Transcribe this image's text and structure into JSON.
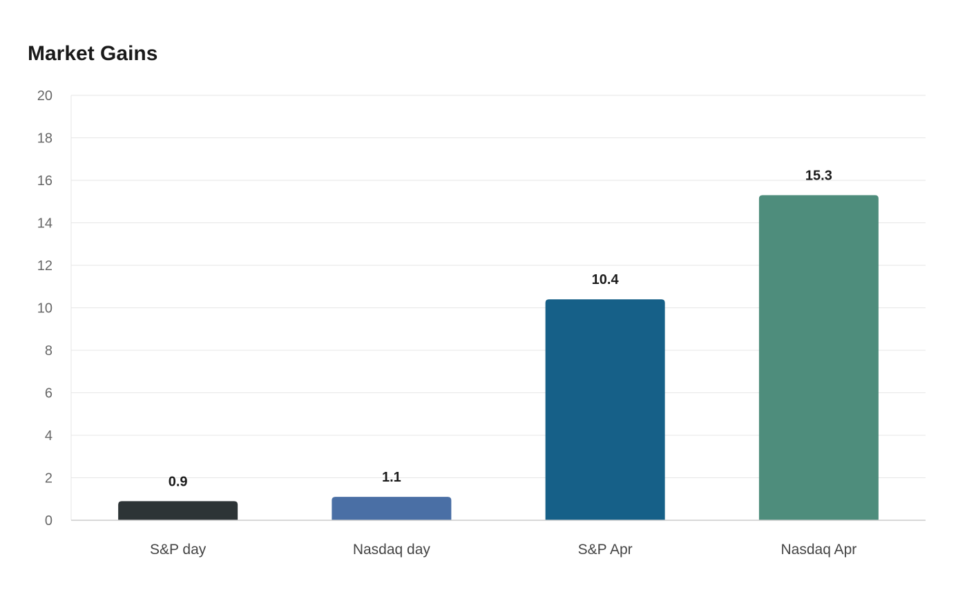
{
  "chart_data": {
    "type": "bar",
    "title": "Market Gains",
    "xlabel": "",
    "ylabel": "",
    "categories": [
      "S&P day",
      "Nasdaq day",
      "S&P Apr",
      "Nasdaq Apr"
    ],
    "values": [
      0.9,
      1.1,
      10.4,
      15.3
    ],
    "data_labels": [
      "0.9",
      "1.1",
      "10.4",
      "15.3"
    ],
    "colors": [
      "#2d3436",
      "#4a6fa5",
      "#166088",
      "#4e8d7c"
    ],
    "ylim": [
      0,
      20
    ],
    "yticks": [
      0,
      2,
      4,
      6,
      8,
      10,
      12,
      14,
      16,
      18,
      20
    ],
    "grid": true,
    "legend": "none"
  }
}
